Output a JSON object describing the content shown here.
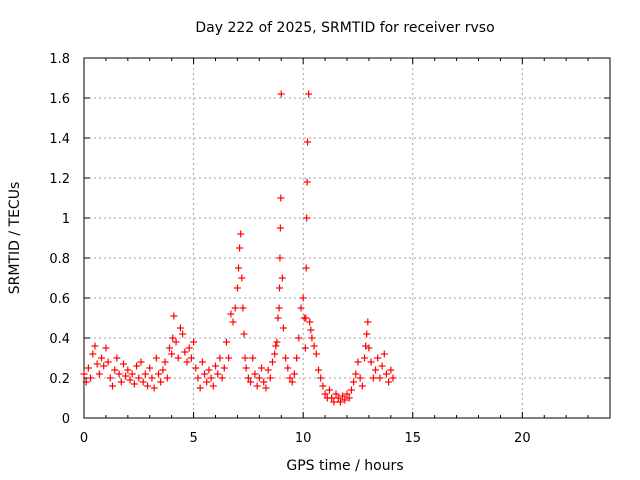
{
  "chart_data": {
    "type": "scatter",
    "title": "Day 222 of 2025, SRMTID for receiver rvso",
    "xlabel": "GPS time / hours",
    "ylabel": "SRMTID / TECUs",
    "xlim": [
      0,
      24
    ],
    "ylim": [
      0,
      1.8
    ],
    "xticks": [
      0,
      5,
      10,
      15,
      20
    ],
    "xtick_labels": [
      "0",
      "5",
      "10",
      "15",
      "20"
    ],
    "yticks": [
      0,
      0.2,
      0.4,
      0.6,
      0.8,
      1,
      1.2,
      1.4,
      1.6,
      1.8
    ],
    "ytick_labels": [
      "0",
      "0.2",
      "0.4",
      "0.6",
      "0.8",
      "1",
      "1.2",
      "1.4",
      "1.6",
      "1.8"
    ],
    "grid": true,
    "marker": "+",
    "color": "#ff0000",
    "series": [
      {
        "name": "SRMTID",
        "x": [
          0.0,
          0.1,
          0.2,
          0.3,
          0.4,
          0.5,
          0.6,
          0.7,
          0.8,
          0.9,
          1.0,
          1.1,
          1.2,
          1.3,
          1.4,
          1.5,
          1.6,
          1.7,
          1.8,
          1.9,
          2.0,
          2.1,
          2.2,
          2.3,
          2.4,
          2.5,
          2.6,
          2.7,
          2.8,
          2.9,
          3.0,
          3.1,
          3.2,
          3.3,
          3.4,
          3.5,
          3.6,
          3.7,
          3.8,
          3.9,
          4.0,
          4.05,
          4.1,
          4.2,
          4.3,
          4.4,
          4.5,
          4.6,
          4.7,
          4.8,
          4.9,
          5.0,
          5.1,
          5.2,
          5.3,
          5.4,
          5.5,
          5.6,
          5.7,
          5.8,
          5.9,
          6.0,
          6.1,
          6.2,
          6.3,
          6.4,
          6.5,
          6.6,
          6.7,
          6.8,
          6.9,
          7.0,
          7.05,
          7.1,
          7.15,
          7.2,
          7.25,
          7.3,
          7.35,
          7.4,
          7.5,
          7.6,
          7.7,
          7.8,
          7.9,
          8.0,
          8.1,
          8.2,
          8.3,
          8.4,
          8.5,
          8.6,
          8.7,
          8.75,
          8.8,
          8.85,
          8.9,
          8.92,
          8.94,
          8.96,
          8.98,
          9.0,
          9.05,
          9.1,
          9.2,
          9.3,
          9.4,
          9.5,
          9.6,
          9.7,
          9.8,
          9.9,
          10.0,
          10.05,
          10.1,
          10.12,
          10.14,
          10.16,
          10.18,
          10.2,
          10.25,
          10.3,
          10.35,
          10.4,
          10.5,
          10.6,
          10.7,
          10.8,
          10.9,
          11.0,
          11.1,
          11.2,
          11.3,
          11.4,
          11.5,
          11.6,
          11.7,
          11.8,
          11.9,
          12.0,
          12.1,
          12.2,
          12.3,
          12.4,
          12.5,
          12.6,
          12.7,
          12.8,
          12.85,
          12.9,
          12.95,
          13.0,
          13.1,
          13.2,
          13.3,
          13.4,
          13.5,
          13.6,
          13.7,
          13.8,
          13.9,
          14.0,
          14.1
        ],
        "y": [
          0.22,
          0.18,
          0.25,
          0.2,
          0.32,
          0.36,
          0.27,
          0.22,
          0.3,
          0.26,
          0.35,
          0.28,
          0.2,
          0.16,
          0.24,
          0.3,
          0.22,
          0.18,
          0.27,
          0.21,
          0.24,
          0.19,
          0.22,
          0.17,
          0.26,
          0.2,
          0.28,
          0.18,
          0.22,
          0.16,
          0.25,
          0.2,
          0.15,
          0.3,
          0.22,
          0.18,
          0.24,
          0.28,
          0.2,
          0.35,
          0.32,
          0.4,
          0.51,
          0.38,
          0.3,
          0.45,
          0.42,
          0.33,
          0.28,
          0.35,
          0.3,
          0.38,
          0.25,
          0.2,
          0.15,
          0.28,
          0.22,
          0.18,
          0.24,
          0.2,
          0.16,
          0.26,
          0.22,
          0.3,
          0.2,
          0.25,
          0.38,
          0.3,
          0.52,
          0.48,
          0.55,
          0.65,
          0.75,
          0.85,
          0.92,
          0.7,
          0.55,
          0.42,
          0.3,
          0.25,
          0.2,
          0.18,
          0.3,
          0.22,
          0.16,
          0.2,
          0.25,
          0.18,
          0.15,
          0.24,
          0.2,
          0.28,
          0.32,
          0.36,
          0.38,
          0.5,
          0.55,
          0.65,
          0.8,
          0.95,
          1.1,
          1.62,
          0.7,
          0.45,
          0.3,
          0.25,
          0.2,
          0.18,
          0.22,
          0.3,
          0.4,
          0.55,
          0.6,
          0.5,
          0.35,
          0.5,
          0.75,
          1.0,
          1.18,
          1.38,
          1.62,
          0.48,
          0.44,
          0.4,
          0.36,
          0.32,
          0.24,
          0.2,
          0.16,
          0.12,
          0.1,
          0.14,
          0.1,
          0.08,
          0.12,
          0.1,
          0.08,
          0.11,
          0.09,
          0.12,
          0.1,
          0.14,
          0.18,
          0.22,
          0.28,
          0.2,
          0.16,
          0.3,
          0.36,
          0.42,
          0.48,
          0.35,
          0.28,
          0.2,
          0.24,
          0.3,
          0.2,
          0.26,
          0.32,
          0.22,
          0.18,
          0.24,
          0.2
        ]
      }
    ]
  }
}
